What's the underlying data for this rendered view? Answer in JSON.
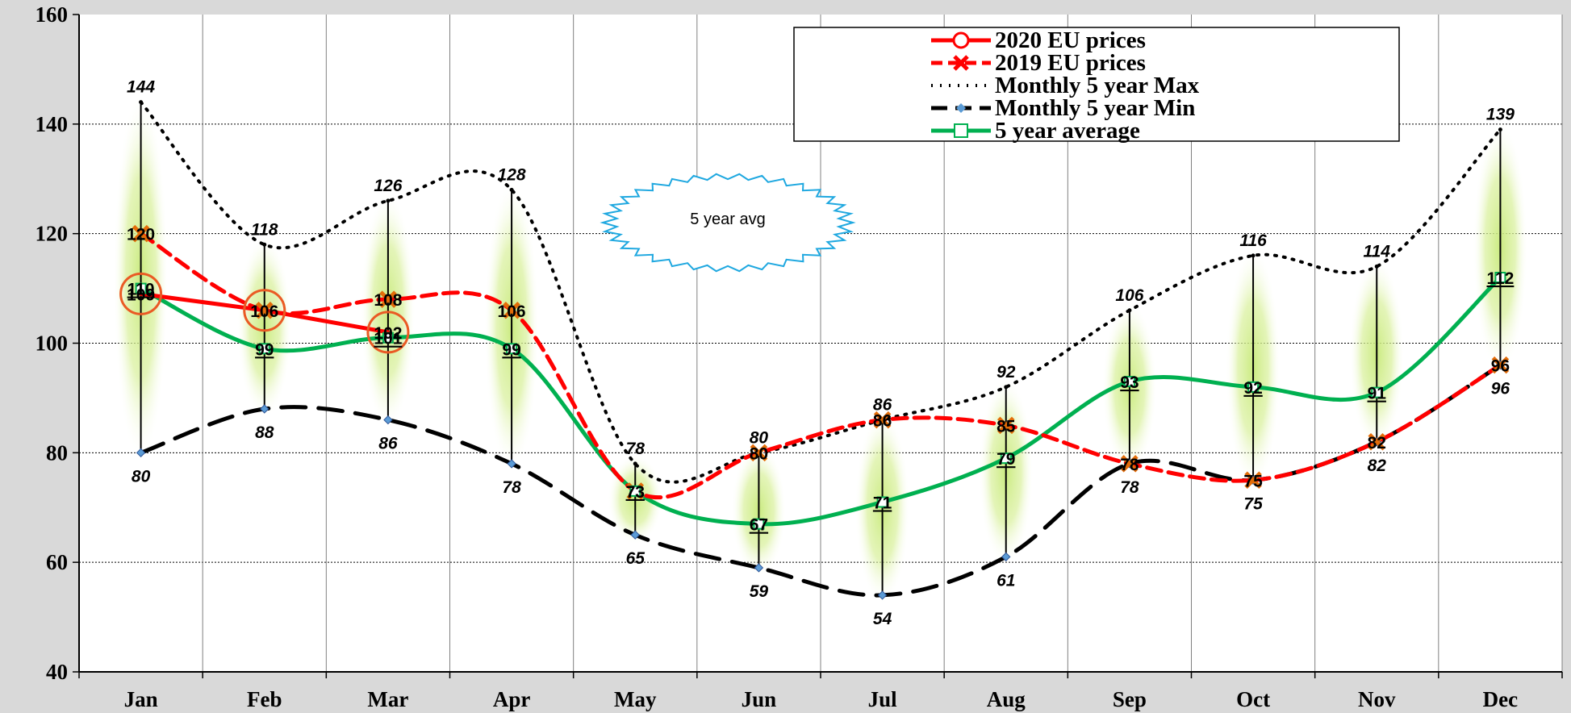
{
  "chart_data": {
    "type": "line",
    "categories": [
      "Jan",
      "Feb",
      "Mar",
      "Apr",
      "May",
      "Jun",
      "Jul",
      "Aug",
      "Sep",
      "Oct",
      "Nov",
      "Dec"
    ],
    "ylim": [
      40,
      160
    ],
    "yticks": [
      "40",
      "60",
      "80",
      "100",
      "120",
      "140",
      "160"
    ],
    "grid": true,
    "legend_position": "top-right",
    "series": [
      {
        "name": "2020 EU prices",
        "values": [
          109,
          106,
          102,
          null,
          null,
          null,
          null,
          null,
          null,
          null,
          null,
          null
        ],
        "color": "#ff0000",
        "style": "solid",
        "marker": "circle"
      },
      {
        "name": "2019 EU prices",
        "values": [
          120,
          106,
          108,
          106,
          73,
          80,
          86,
          85,
          78,
          75,
          82,
          96
        ],
        "color": "#ff0000",
        "style": "dashed",
        "marker": "x"
      },
      {
        "name": "Monthly 5 year Max",
        "values": [
          144,
          118,
          126,
          128,
          78,
          80,
          86,
          92,
          106,
          116,
          114,
          139
        ],
        "color": "#000000",
        "style": "dotted",
        "marker": "none"
      },
      {
        "name": "Monthly 5 year Min",
        "values": [
          80,
          88,
          86,
          78,
          65,
          59,
          54,
          61,
          78,
          75,
          82,
          96
        ],
        "color": "#000000",
        "style": "longdash",
        "marker": "diamond"
      },
      {
        "name": "5 year average",
        "values": [
          110,
          99,
          101,
          99,
          73,
          67,
          71,
          79,
          93,
          92,
          91,
          112
        ],
        "color": "#00b050",
        "style": "solid",
        "marker": "square"
      }
    ],
    "max_labels": [
      "144",
      "118",
      "126",
      "128",
      "78",
      "80",
      "86",
      "92",
      "106",
      "116",
      "114",
      "139"
    ],
    "min_labels": [
      "80",
      "88",
      "86",
      "78",
      "65",
      "59",
      "54",
      "61",
      "78",
      "75",
      "82",
      "96"
    ],
    "avg_labels": [
      "110",
      "99",
      "101",
      "99",
      "73",
      "67",
      "71",
      "79",
      "93",
      "92",
      "91",
      "112"
    ],
    "price_labels": [
      "109",
      "106",
      "102",
      "106",
      "73",
      "80",
      "86",
      "85",
      "78",
      "75",
      "82",
      "96"
    ],
    "y2019_labels": [
      "120",
      "",
      "108",
      "",
      "",
      "",
      "",
      "",
      "",
      "",
      "",
      ""
    ],
    "annotation": "5 year avg"
  }
}
